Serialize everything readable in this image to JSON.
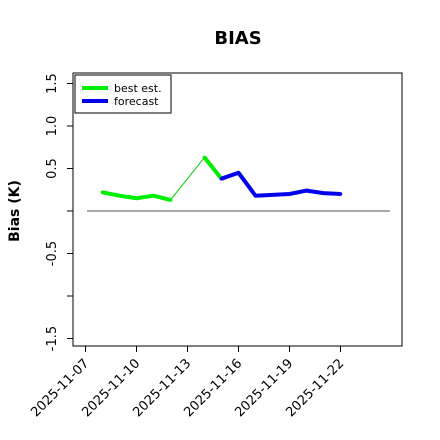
{
  "chart_data": {
    "type": "line",
    "title": "BIAS",
    "ylabel": "Bias (K)",
    "xlabel": "",
    "ylim": [
      -1.6,
      1.65
    ],
    "xlim": [
      "2025-11-06",
      "2025-11-24"
    ],
    "yticks": [
      -1.5,
      -1.0,
      -0.5,
      0.0,
      0.5,
      1.0,
      1.5
    ],
    "ytick_labels": [
      "-1.5",
      "",
      "-0.5",
      "",
      "0.5",
      "1.0",
      "1.5"
    ],
    "xticks": [
      "2025-11-07",
      "2025-11-10",
      "2025-11-13",
      "2025-11-16",
      "2025-11-19",
      "2025-11-22"
    ],
    "highlight_tick": "2025-11-13",
    "zero_line": 0.0,
    "grid": false,
    "legend": {
      "placement": "top-left",
      "entries": [
        "best est.",
        "forecast"
      ]
    },
    "series": [
      {
        "name": "best est.",
        "color": "#00ee00",
        "segments": [
          {
            "x": [
              "2025-11-08",
              "2025-11-09",
              "2025-11-10",
              "2025-11-11",
              "2025-11-12"
            ],
            "y": [
              0.22,
              0.18,
              0.15,
              0.18,
              0.13
            ]
          },
          {
            "x": [
              "2025-11-14",
              "2025-11-15"
            ],
            "y": [
              0.63,
              0.38
            ]
          }
        ]
      },
      {
        "name": "forecast",
        "color": "#0000ee",
        "segments": [
          {
            "x": [
              "2025-11-15",
              "2025-11-16",
              "2025-11-17",
              "2025-11-18",
              "2025-11-19",
              "2025-11-20",
              "2025-11-21",
              "2025-11-22"
            ],
            "y": [
              0.38,
              0.45,
              0.18,
              0.19,
              0.2,
              0.24,
              0.21,
              0.2
            ]
          }
        ]
      }
    ],
    "connector": {
      "color": "#00cc00",
      "x": [
        "2025-11-12",
        "2025-11-14"
      ],
      "y": [
        0.13,
        0.63
      ]
    }
  }
}
